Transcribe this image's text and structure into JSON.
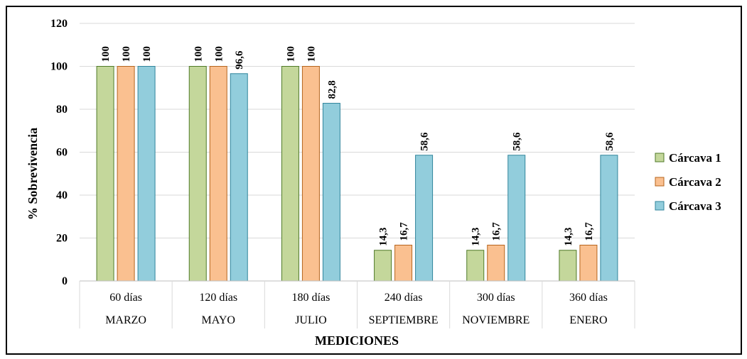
{
  "chart_data": {
    "type": "bar",
    "categories": [
      "60 días",
      "120 días",
      "180 días",
      "240 días",
      "300 días",
      "360 días"
    ],
    "category_groups": [
      "MARZO",
      "MAYO",
      "JULIO",
      "SEPTIEMBRE",
      "NOVIEMBRE",
      "ENERO"
    ],
    "series": [
      {
        "name": "Cárcava 1",
        "color": "#c4d79b",
        "stroke": "#4f7a28",
        "values": [
          100,
          100,
          100,
          14.3,
          14.3,
          14.3
        ],
        "labels": [
          "100",
          "100",
          "100",
          "14,3",
          "14,3",
          "14,3"
        ]
      },
      {
        "name": "Cárcava 2",
        "color": "#fac090",
        "stroke": "#b5651d",
        "values": [
          100,
          100,
          100,
          16.7,
          16.7,
          16.7
        ],
        "labels": [
          "100",
          "100",
          "100",
          "16,7",
          "16,7",
          "16,7"
        ]
      },
      {
        "name": "Cárcava 3",
        "color": "#92cddc",
        "stroke": "#31859c",
        "values": [
          100,
          96.6,
          82.8,
          58.6,
          58.6,
          58.6
        ],
        "labels": [
          "100",
          "96,6",
          "82,8",
          "58,6",
          "58,6",
          "58,6"
        ]
      }
    ],
    "ylabel": "% Sobrevivencia",
    "xlabel": "MEDICIONES",
    "ylim": [
      0,
      120
    ],
    "yticks": [
      "0",
      "20",
      "40",
      "60",
      "80",
      "100",
      "120"
    ],
    "grid": true,
    "legend_position": "right"
  }
}
